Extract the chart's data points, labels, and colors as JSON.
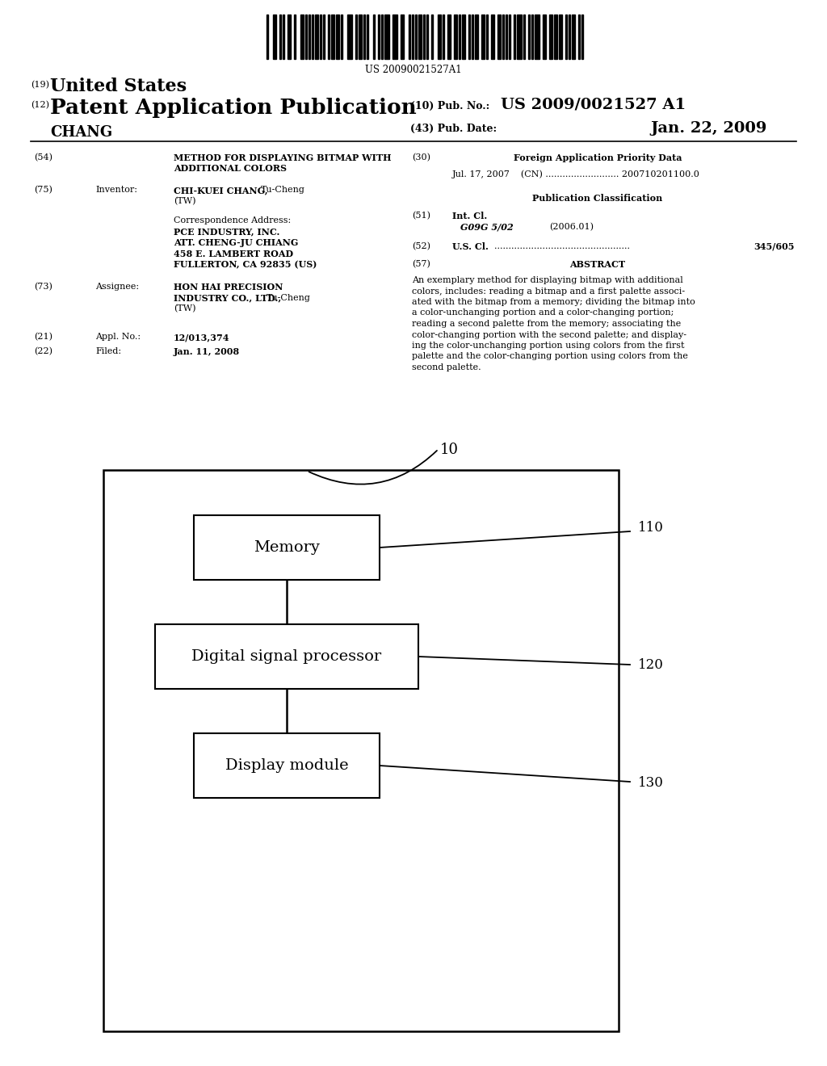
{
  "bg_color": "#ffffff",
  "barcode_text": "US 20090021527A1",
  "header_19": "(19)",
  "header_19_text": "United States",
  "header_12": "(12)",
  "header_12_text": "Patent Application Publication",
  "header_10_label": "(10) Pub. No.:",
  "header_10_value": "US 2009/0021527 A1",
  "header_43_label": "(43) Pub. Date:",
  "header_43_value": "Jan. 22, 2009",
  "header_name": "CHANG",
  "field_54_label": "(54)",
  "field_54_line1": "METHOD FOR DISPLAYING BITMAP WITH",
  "field_54_line2": "ADDITIONAL COLORS",
  "field_75_label": "(75)",
  "field_75_field": "Inventor:",
  "field_75_name_bold": "CHI-KUEI CHANG,",
  "field_75_name_rest": " Tu-Cheng",
  "field_75_tw": "(TW)",
  "field_corr": "Correspondence Address:",
  "field_corr_line1": "PCE INDUSTRY, INC.",
  "field_corr_line2": "ATT. CHENG-JU CHIANG",
  "field_corr_line3": "458 E. LAMBERT ROAD",
  "field_corr_line4": "FULLERTON, CA 92835 (US)",
  "field_73_label": "(73)",
  "field_73_field": "Assignee:",
  "field_73_line1_bold": "HON HAI PRECISION",
  "field_73_line2_bold": "INDUSTRY CO., LTD.,",
  "field_73_line2_rest": " Tu-Cheng",
  "field_73_tw": "(TW)",
  "field_21_label": "(21)",
  "field_21_field": "Appl. No.:",
  "field_21_text": "12/013,374",
  "field_22_label": "(22)",
  "field_22_field": "Filed:",
  "field_22_text": "Jan. 11, 2008",
  "field_30_label": "(30)",
  "field_30_header": "Foreign Application Priority Data",
  "field_30_data": "Jul. 17, 2007    (CN) .......................... 200710201100.0",
  "pub_class_header": "Publication Classification",
  "field_51_label": "(51)",
  "field_51_field": "Int. Cl.",
  "field_51_class": "G09G 5/02",
  "field_51_year": "(2006.01)",
  "field_52_label": "(52)",
  "field_52_field": "U.S. Cl.",
  "field_52_value": "345/605",
  "field_57_label": "(57)",
  "field_57_header": "ABSTRACT",
  "abstract_lines": [
    "An exemplary method for displaying bitmap with additional",
    "colors, includes: reading a bitmap and a first palette associ-",
    "ated with the bitmap from a memory; dividing the bitmap into",
    "a color-unchanging portion and a color-changing portion;",
    "reading a second palette from the memory; associating the",
    "color-changing portion with the second palette; and display-",
    "ing the color-unchanging portion using colors from the first",
    "palette and the color-changing portion using colors from the",
    "second palette."
  ],
  "diagram_label_10": "10",
  "diagram_label_110": "110",
  "diagram_label_120": "120",
  "diagram_label_130": "130",
  "box_memory": "Memory",
  "box_dsp": "Digital signal processor",
  "box_display": "Display module"
}
